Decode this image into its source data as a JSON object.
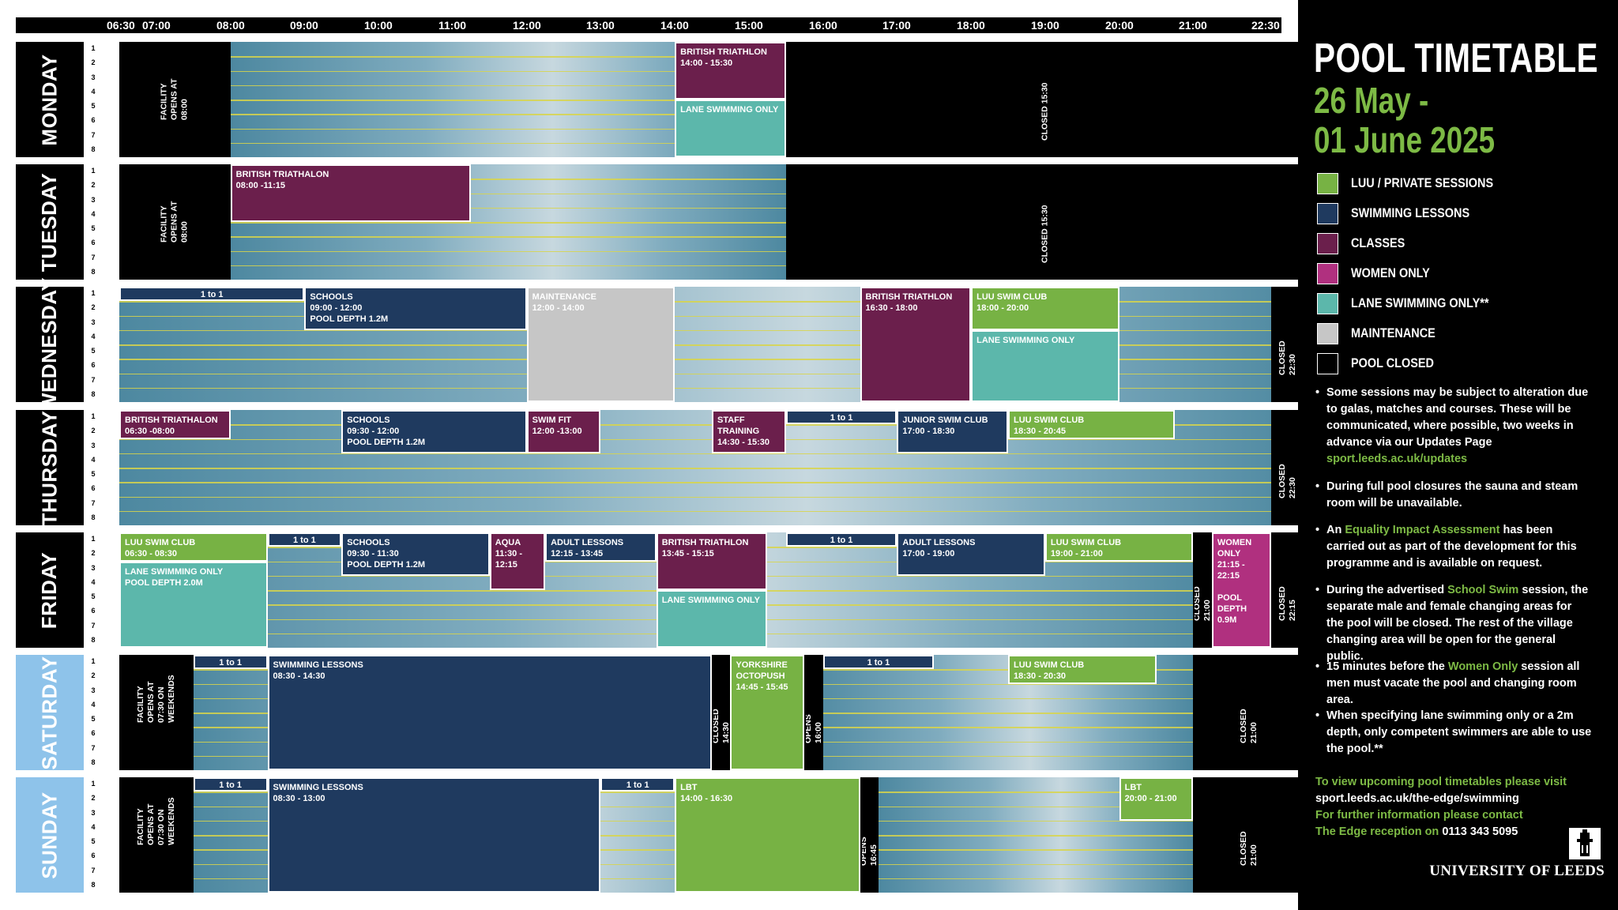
{
  "hours": [
    "06:30",
    "07:00",
    "08:00",
    "09:00",
    "10:00",
    "11:00",
    "12:00",
    "13:00",
    "14:00",
    "15:00",
    "16:00",
    "17:00",
    "18:00",
    "19:00",
    "20:00",
    "21:00",
    "22:30"
  ],
  "lane_numbers": [
    "1",
    "2",
    "3",
    "4",
    "5",
    "6",
    "7",
    "8"
  ],
  "days": [
    {
      "name": "MONDAY",
      "weekend": false,
      "pool": [
        [
          8,
          15.5
        ]
      ],
      "blocks": [
        {
          "start": 6.5,
          "end": 8,
          "lanes": [
            1,
            8
          ],
          "color": "black",
          "text": "FACILITY OPENS AT 08:00",
          "vertical": true
        },
        {
          "start": 14,
          "end": 15.5,
          "lanes": [
            1,
            4
          ],
          "color": "purple",
          "text": "BRITISH TRIATHLON\n14:00 - 15:30"
        },
        {
          "start": 14,
          "end": 15.5,
          "lanes": [
            5,
            8
          ],
          "color": "teal",
          "text": "LANE SWIMMING ONLY"
        },
        {
          "start": 15.5,
          "end": 22.5,
          "lanes": [
            1,
            8
          ],
          "color": "black",
          "text": "CLOSED 15:30",
          "vertical": true
        }
      ]
    },
    {
      "name": "TUESDAY",
      "weekend": false,
      "pool": [
        [
          8,
          15.5
        ]
      ],
      "blocks": [
        {
          "start": 6.5,
          "end": 8,
          "lanes": [
            1,
            8
          ],
          "color": "black",
          "text": "FACILITY OPENS AT 08:00",
          "vertical": true
        },
        {
          "start": 8,
          "end": 11.25,
          "lanes": [
            1,
            4
          ],
          "color": "purple",
          "text": "BRITISH TRIATHALON\n08:00 -11:15"
        },
        {
          "start": 15.5,
          "end": 22.5,
          "lanes": [
            1,
            8
          ],
          "color": "black",
          "text": "CLOSED 15:30",
          "vertical": true
        }
      ]
    },
    {
      "name": "WEDNESDAY",
      "weekend": false,
      "pool": [
        [
          6.5,
          22.5
        ]
      ],
      "blocks": [
        {
          "start": 6.5,
          "end": 9,
          "lanes": [
            1,
            1
          ],
          "color": "navy",
          "text": "1 to 1",
          "center": true
        },
        {
          "start": 9,
          "end": 12,
          "lanes": [
            1,
            3
          ],
          "color": "navy",
          "text": "SCHOOLS\n09:00 - 12:00\nPOOL DEPTH 1.2M"
        },
        {
          "start": 12,
          "end": 14,
          "lanes": [
            1,
            8
          ],
          "color": "grey",
          "text": "MAINTENANCE\n12:00 - 14:00"
        },
        {
          "start": 16.5,
          "end": 18,
          "lanes": [
            1,
            8
          ],
          "color": "purple",
          "text": "BRITISH TRIATHLON\n16:30 - 18:00"
        },
        {
          "start": 18,
          "end": 20,
          "lanes": [
            1,
            3
          ],
          "color": "green",
          "text": "LUU SWIM CLUB\n18:00 - 20:00"
        },
        {
          "start": 18,
          "end": 20,
          "lanes": [
            4,
            8
          ],
          "color": "teal",
          "text": "LANE SWIMMING ONLY"
        },
        {
          "start": 22.05,
          "end": 22.5,
          "lanes": [
            1,
            8
          ],
          "color": "black",
          "text": "CLOSED 22:30",
          "vertical": true
        }
      ]
    },
    {
      "name": "THURSDAY",
      "weekend": false,
      "pool": [
        [
          6.5,
          22.5
        ]
      ],
      "blocks": [
        {
          "start": 6.5,
          "end": 8,
          "lanes": [
            1,
            2
          ],
          "color": "purple",
          "text": "BRITISH TRIATHALON\n06:30 -08:00"
        },
        {
          "start": 9.5,
          "end": 12,
          "lanes": [
            1,
            3
          ],
          "color": "navy",
          "text": "SCHOOLS\n09:30 - 12:00\nPOOL DEPTH 1.2M"
        },
        {
          "start": 12,
          "end": 13,
          "lanes": [
            1,
            3
          ],
          "color": "purple",
          "text": "SWIM FIT\n12:00 -13:00"
        },
        {
          "start": 14.5,
          "end": 15.5,
          "lanes": [
            1,
            3
          ],
          "color": "purple",
          "text": "STAFF\nTRAINING\n14:30 - 15:30"
        },
        {
          "start": 15.5,
          "end": 17,
          "lanes": [
            1,
            1
          ],
          "color": "navy",
          "text": "1 to 1",
          "center": true
        },
        {
          "start": 17,
          "end": 18.5,
          "lanes": [
            1,
            3
          ],
          "color": "navy",
          "text": "JUNIOR SWIM CLUB\n17:00 - 18:30"
        },
        {
          "start": 18.5,
          "end": 20.75,
          "lanes": [
            1,
            2
          ],
          "color": "green",
          "text": "LUU SWIM CLUB\n18:30 - 20:45"
        },
        {
          "start": 22.05,
          "end": 22.5,
          "lanes": [
            1,
            8
          ],
          "color": "black",
          "text": "CLOSED 22:30",
          "vertical": true
        }
      ]
    },
    {
      "name": "FRIDAY",
      "weekend": false,
      "pool": [
        [
          6.5,
          21.25
        ],
        [
          22.05,
          22.5
        ]
      ],
      "blocks": [
        {
          "start": 6.5,
          "end": 8.5,
          "lanes": [
            1,
            2
          ],
          "color": "green",
          "text": "LUU SWIM CLUB\n06:30 - 08:30"
        },
        {
          "start": 6.5,
          "end": 8.5,
          "lanes": [
            3,
            8
          ],
          "color": "teal",
          "text": "LANE SWIMMING ONLY\nPOOL DEPTH 2.0M"
        },
        {
          "start": 8.5,
          "end": 9.5,
          "lanes": [
            1,
            1
          ],
          "color": "navy",
          "text": "1 to 1",
          "center": true
        },
        {
          "start": 9.5,
          "end": 11.5,
          "lanes": [
            1,
            3
          ],
          "color": "navy",
          "text": "SCHOOLS\n09:30 - 11:30\nPOOL DEPTH 1.2M"
        },
        {
          "start": 11.5,
          "end": 12.25,
          "lanes": [
            1,
            4
          ],
          "color": "purple",
          "text": "AQUA\n11:30 - 12:15"
        },
        {
          "start": 12.25,
          "end": 13.75,
          "lanes": [
            1,
            2
          ],
          "color": "navy",
          "text": "ADULT LESSONS\n12:15 - 13:45"
        },
        {
          "start": 13.75,
          "end": 15.25,
          "lanes": [
            1,
            4
          ],
          "color": "purple",
          "text": "BRITISH TRIATHLON\n13:45 - 15:15"
        },
        {
          "start": 13.75,
          "end": 15.25,
          "lanes": [
            5,
            8
          ],
          "color": "teal",
          "text": "LANE SWIMMING ONLY"
        },
        {
          "start": 15.5,
          "end": 17,
          "lanes": [
            1,
            1
          ],
          "color": "navy",
          "text": "1 to 1",
          "center": true
        },
        {
          "start": 17,
          "end": 19,
          "lanes": [
            1,
            3
          ],
          "color": "navy",
          "text": "ADULT LESSONS\n17:00 - 19:00"
        },
        {
          "start": 19,
          "end": 21,
          "lanes": [
            1,
            2
          ],
          "color": "green",
          "text": "LUU SWIM CLUB\n19:00 - 21:00"
        },
        {
          "start": 21,
          "end": 21.25,
          "lanes": [
            1,
            8
          ],
          "color": "black",
          "text": "CLOSED 21:00",
          "vertical": true
        },
        {
          "start": 21.25,
          "end": 22.05,
          "lanes": [
            1,
            8
          ],
          "color": "pink",
          "text": "WOMEN ONLY\n21:15 - 22:15\n\nPOOL DEPTH\n0.9M"
        },
        {
          "start": 22.05,
          "end": 22.5,
          "lanes": [
            1,
            8
          ],
          "color": "black",
          "text": "CLOSED 22:15",
          "vertical": true
        }
      ]
    },
    {
      "name": "SATURDAY",
      "weekend": true,
      "pool": [
        [
          7.5,
          14.5
        ],
        [
          15.75,
          21
        ]
      ],
      "blocks": [
        {
          "start": 6.5,
          "end": 7.5,
          "lanes": [
            1,
            8
          ],
          "color": "black",
          "text": "FACILITY OPENS AT\n07:30 ON WEEKENDS",
          "vertical": true
        },
        {
          "start": 7.5,
          "end": 8.5,
          "lanes": [
            1,
            1
          ],
          "color": "navy",
          "text": "1 to 1",
          "center": true
        },
        {
          "start": 8.5,
          "end": 14.5,
          "lanes": [
            1,
            8
          ],
          "color": "navy",
          "text": "SWIMMING LESSONS\n08:30 - 14:30"
        },
        {
          "start": 14.5,
          "end": 14.75,
          "lanes": [
            1,
            8
          ],
          "color": "black",
          "text": "CLOSED 14:30",
          "vertical": true
        },
        {
          "start": 14.75,
          "end": 15.75,
          "lanes": [
            1,
            8
          ],
          "color": "green",
          "text": "YORKSHIRE\nOCTOPUSH\n14:45 - 15:45"
        },
        {
          "start": 15.75,
          "end": 16,
          "lanes": [
            1,
            8
          ],
          "color": "black",
          "text": "OPENS 16:00",
          "vertical": true
        },
        {
          "start": 16,
          "end": 17.5,
          "lanes": [
            1,
            1
          ],
          "color": "navy",
          "text": "1 to 1",
          "center": true
        },
        {
          "start": 18.5,
          "end": 20.5,
          "lanes": [
            1,
            2
          ],
          "color": "green",
          "text": "LUU SWIM CLUB\n18:30 - 20:30"
        },
        {
          "start": 21,
          "end": 22.5,
          "lanes": [
            1,
            8
          ],
          "color": "black",
          "text": "CLOSED 21:00",
          "vertical": true
        }
      ]
    },
    {
      "name": "SUNDAY",
      "weekend": true,
      "pool": [
        [
          7.5,
          16.5
        ],
        [
          16.75,
          21
        ]
      ],
      "blocks": [
        {
          "start": 6.5,
          "end": 7.5,
          "lanes": [
            1,
            8
          ],
          "color": "black",
          "text": "FACILITY OPENS AT\n07:30 ON WEEKENDS",
          "vertical": true
        },
        {
          "start": 7.5,
          "end": 8.5,
          "lanes": [
            1,
            1
          ],
          "color": "navy",
          "text": "1 to 1",
          "center": true
        },
        {
          "start": 8.5,
          "end": 13,
          "lanes": [
            1,
            8
          ],
          "color": "navy",
          "text": "SWIMMING LESSONS\n08:30 - 13:00"
        },
        {
          "start": 13,
          "end": 14,
          "lanes": [
            1,
            1
          ],
          "color": "navy",
          "text": "1 to 1",
          "center": true
        },
        {
          "start": 14,
          "end": 16.5,
          "lanes": [
            1,
            8
          ],
          "color": "green",
          "text": "LBT\n14:00 - 16:30"
        },
        {
          "start": 16.5,
          "end": 16.75,
          "lanes": [
            1,
            8
          ],
          "color": "black",
          "text": "OPENS 16:45",
          "vertical": true
        },
        {
          "start": 20,
          "end": 21,
          "lanes": [
            1,
            3
          ],
          "color": "green",
          "text": "LBT\n20:00 - 21:00"
        },
        {
          "start": 21,
          "end": 22.5,
          "lanes": [
            1,
            8
          ],
          "color": "black",
          "text": "CLOSED 21:00",
          "vertical": true
        }
      ]
    }
  ],
  "panel": {
    "title": "POOL TIMETABLE",
    "dates": "26 May -\n01 June 2025",
    "legend": [
      {
        "label": "LUU / PRIVATE SESSIONS",
        "color": "#77b244"
      },
      {
        "label": "SWIMMING LESSONS",
        "color": "#1f3a5f"
      },
      {
        "label": "CLASSES",
        "color": "#6b1f4c"
      },
      {
        "label": "WOMEN ONLY",
        "color": "#b0307f"
      },
      {
        "label": "LANE SWIMMING ONLY**",
        "color": "#5cb7ab"
      },
      {
        "label": "MAINTENANCE",
        "color": "#c6c6c6"
      },
      {
        "label": "POOL CLOSED",
        "color": "#000000"
      }
    ],
    "notes": {
      "n1_text": "Some sessions may be subject to alteration due to galas, matches and courses. These will be communicated, where possible, two weeks in advance via our Updates Page",
      "n1_link": "sport.leeds.ac.uk/updates",
      "n2_text": "During full pool closures the sauna and steam room will be unavailable.",
      "n3_pre": "An",
      "n3_link": "Equality Impact Assessment",
      "n3_post": "has been carried out as part of the development for this programme and is available on request.",
      "n4_pre": "During the advertised",
      "n4_link": "School Swim",
      "n4_post": "session, the separate male and female changing areas for the pool will be closed. The rest of the village changing area will be open for the general public.",
      "n5_pre": "15 minutes before the",
      "n5_link": "Women Only",
      "n5_post": "session all men must vacate the pool and changing room area.",
      "n6_text": "When specifying lane swimming only or a 2m depth, only competent swimmers are able to use the pool.**"
    },
    "footer": {
      "line1": "To view upcoming pool timetables please visit",
      "line2": "sport.leeds.ac.uk/the-edge/swimming",
      "line3": "For further information please contact",
      "line4a": "The Edge reception on",
      "line4b": "0113 343 5095"
    },
    "logo_text": "UNIVERSITY OF LEEDS"
  },
  "colors": {
    "green": "#77b244",
    "navy": "#1f3a5f",
    "purple": "#6b1f4c",
    "pink": "#b0307f",
    "teal": "#5cb7ab",
    "grey": "#c6c6c6",
    "black": "#000000",
    "highlight": "#7dba45"
  }
}
